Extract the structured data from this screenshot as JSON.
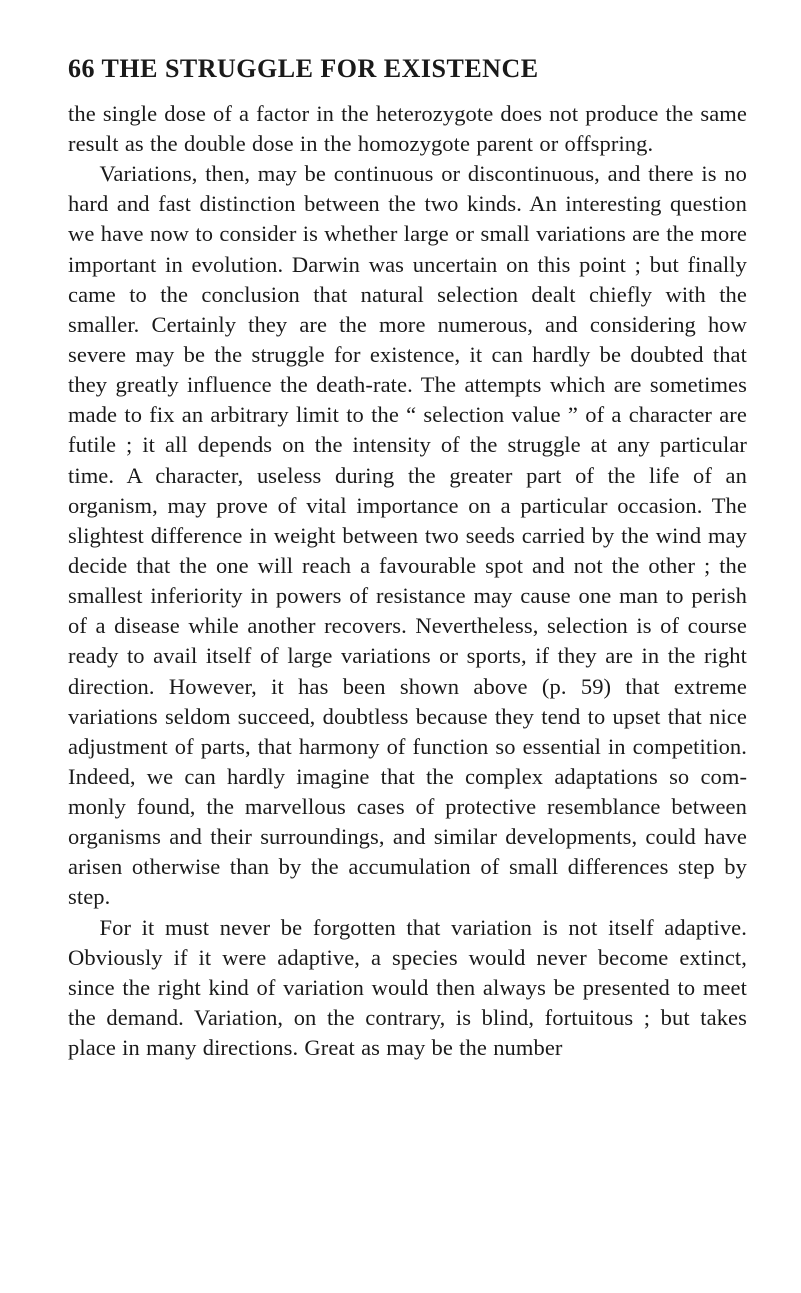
{
  "header": {
    "page_number": "66",
    "running_title": "THE STRUGGLE FOR EXISTENCE"
  },
  "paragraphs": [
    "the single dose of a factor in the heterozygote does not produce the same result as the double dose in the homo­zygote parent or offspring.",
    "Variations, then, may be continuous or discontinuous, and there is no hard and fast distinction between the two kinds. An interesting question we have now to consider is whether large or small variations are the more import­ant in evolution. Darwin was uncertain on this point ; but finally came to the conclusion that natural selection dealt chiefly with the smaller. Certainly they are the more numerous, and considering how severe may be the struggle for existence, it can hardly be doubted that they greatly influence the death-rate. The attempts which are sometimes made to fix an arbitrary limit to the “ selection value ” of a character are futile ; it all depends on the intensity of the struggle at any particular time. A character, useless during the greater part of the life of an organism, may prove of vital importance on a par­ticular occasion. The slightest difference in weight between two seeds carried by the wind may decide that the one will reach a favourable spot and not the other ; the smallest inferiority in powers of resistance may cause one man to perish of a disease while another recovers. Nevertheless, selection is of course ready to avail itself of large variations or sports, if they are in the right direction. However, it has been shown above (p. 59) that extreme variations seldom succeed, doubtless because they tend to upset that nice adjustment of parts, that harmony of function so essential in competition. Indeed, we can hardly imagine that the complex adaptations so com­monly found, the marvellous cases of protective resem­blance between organisms and their surroundings, and similar developments, could have arisen otherwise than by the accumulation of small differences step by step.",
    "For it must never be forgotten that variation is not itself adaptive. Obviously if it were adaptive, a species would never become extinct, since the right kind of varia­tion would then always be presented to meet the demand. Variation, on the contrary, is blind, fortuitous ; but takes place in many directions. Great as may be the number"
  ]
}
